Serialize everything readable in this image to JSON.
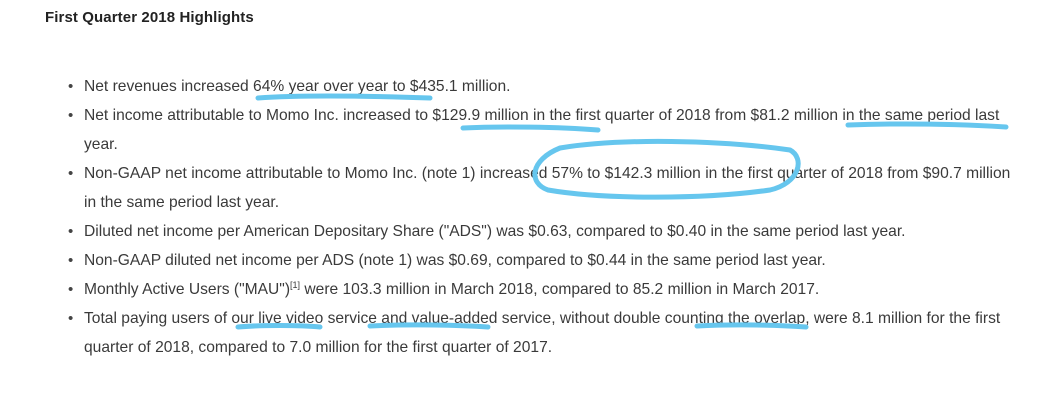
{
  "heading": "First Quarter 2018 Highlights",
  "bullet_symbol": "•",
  "items": [
    {
      "parts": [
        "Net revenues increased 64% year over year to $435.1 million."
      ]
    },
    {
      "parts": [
        "Net income attributable to Momo Inc. increased to $129.9 million in the first quarter of 2018 from $81.2 million in the same period last year."
      ]
    },
    {
      "parts": [
        "Non-GAAP net income attributable to Momo Inc. (note 1) increased 57% to $142.3 million in the first quarter of 2018 from $90.7 million in the same period last year."
      ]
    },
    {
      "parts": [
        "Diluted net income per American Depositary Share (\"ADS\") was $0.63, compared to $0.40 in the same period last year."
      ]
    },
    {
      "parts": [
        "Non-GAAP diluted net income per ADS (note 1) was $0.69, compared to $0.44 in the same period last year."
      ]
    },
    {
      "parts": [
        "Monthly Active Users (\"MAU\")",
        "[1]",
        " were 103.3 million in March 2018, compared to 85.2 million in March 2017."
      ]
    },
    {
      "parts": [
        "Total paying users of our live video service and value-added service, without double counting the overlap, were 8.1 million for the first quarter of 2018, compared to 7.0 million for the first quarter of 2017."
      ]
    }
  ],
  "highlight_color": "#66c6ee"
}
